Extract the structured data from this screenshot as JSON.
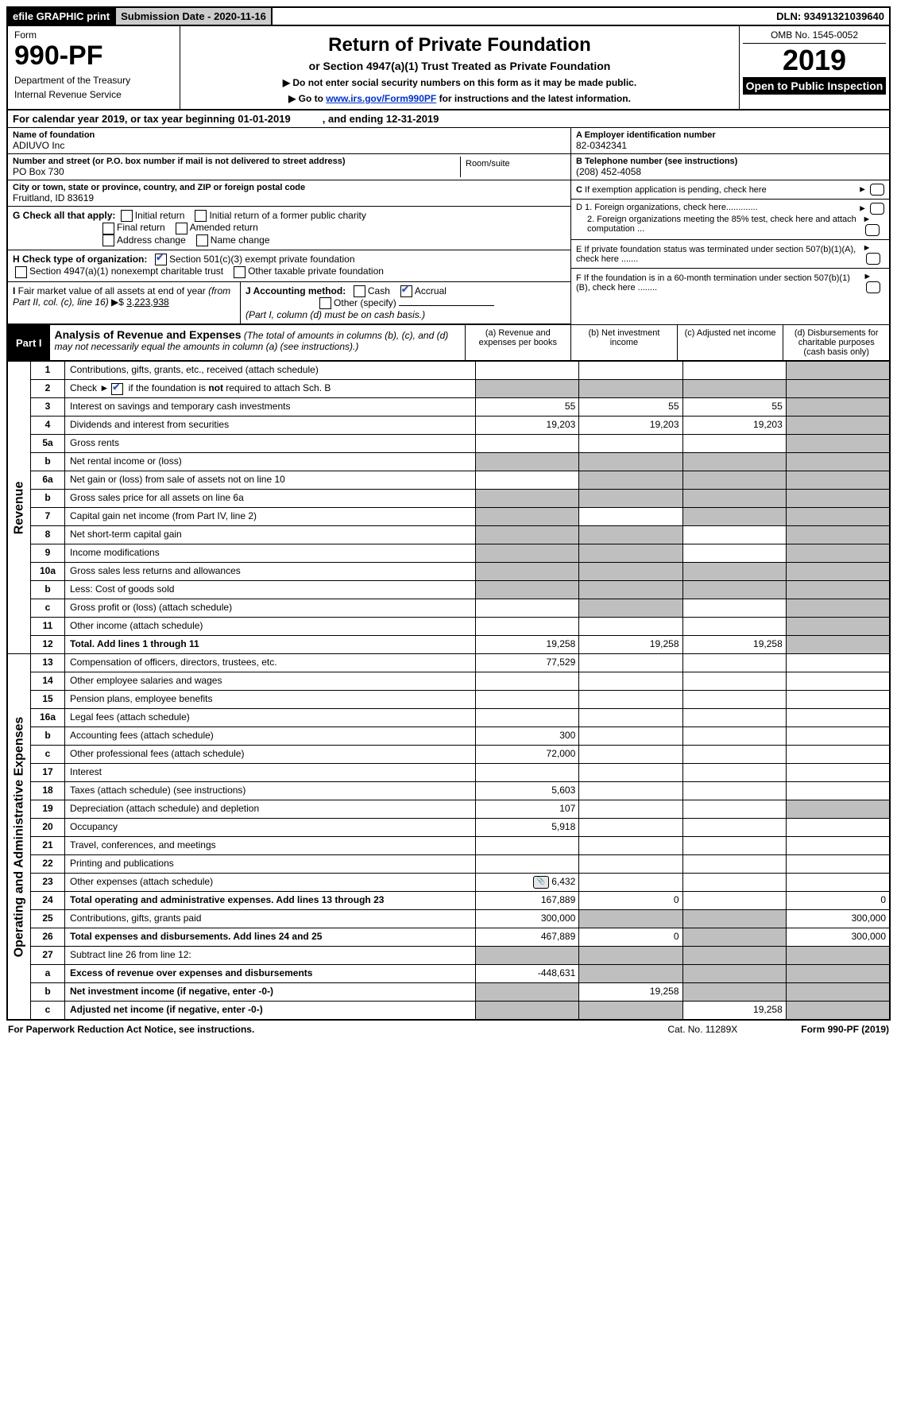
{
  "topbar": {
    "efile": "efile GRAPHIC print",
    "submission_label": "Submission Date - 2020-11-16",
    "dln": "DLN: 93491321039640"
  },
  "header": {
    "form_word": "Form",
    "form_num": "990-PF",
    "dept1": "Department of the Treasury",
    "dept2": "Internal Revenue Service",
    "title": "Return of Private Foundation",
    "subtitle": "or Section 4947(a)(1) Trust Treated as Private Foundation",
    "instruct1": "▶ Do not enter social security numbers on this form as it may be made public.",
    "instruct2_pre": "▶ Go to ",
    "instruct2_link": "www.irs.gov/Form990PF",
    "instruct2_post": " for instructions and the latest information.",
    "omb": "OMB No. 1545-0052",
    "year": "2019",
    "open": "Open to Public Inspection"
  },
  "calendar": {
    "line1": "For calendar year 2019, or tax year beginning 01-01-2019",
    "line2": ", and ending 12-31-2019"
  },
  "identity": {
    "name_label": "Name of foundation",
    "name": "ADIUVO Inc",
    "addr_label": "Number and street (or P.O. box number if mail is not delivered to street address)",
    "addr": "PO Box 730",
    "room_label": "Room/suite",
    "city_label": "City or town, state or province, country, and ZIP or foreign postal code",
    "city": "Fruitland, ID  83619",
    "ein_label": "A Employer identification number",
    "ein": "82-0342341",
    "phone_label": "B Telephone number (see instructions)",
    "phone": "(208) 452-4058",
    "c_label": "C If exemption application is pending, check here",
    "d1": "D 1. Foreign organizations, check here.............",
    "d2": "2. Foreign organizations meeting the 85% test, check here and attach computation ...",
    "e": "E  If private foundation status was terminated under section 507(b)(1)(A), check here .......",
    "f": "F  If the foundation is in a 60-month termination under section 507(b)(1)(B), check here ........"
  },
  "g": {
    "label": "G Check all that apply:",
    "opts": [
      "Initial return",
      "Initial return of a former public charity",
      "Final return",
      "Amended return",
      "Address change",
      "Name change"
    ]
  },
  "h": {
    "label": "H Check type of organization:",
    "opt1": "Section 501(c)(3) exempt private foundation",
    "opt2": "Section 4947(a)(1) nonexempt charitable trust",
    "opt3": "Other taxable private foundation"
  },
  "i": {
    "label": "I Fair market value of all assets at end of year (from Part II, col. (c), line 16) ▶$ ",
    "value": "3,223,938"
  },
  "j": {
    "label": "J Accounting method:",
    "cash": "Cash",
    "accrual": "Accrual",
    "other": "Other (specify)",
    "note": "(Part I, column (d) must be on cash basis.)"
  },
  "part1": {
    "tab": "Part I",
    "title": "Analysis of Revenue and Expenses",
    "note": "(The total of amounts in columns (b), (c), and (d) may not necessarily equal the amounts in column (a) (see instructions).)",
    "col_a": "(a)   Revenue and expenses per books",
    "col_b": "(b)  Net investment income",
    "col_c": "(c)  Adjusted net income",
    "col_d": "(d)  Disbursements for charitable purposes (cash basis only)"
  },
  "sections": {
    "revenue": "Revenue",
    "expenses": "Operating and Administrative Expenses"
  },
  "rows": [
    {
      "n": "1",
      "d": "Contributions, gifts, grants, etc., received (attach schedule)",
      "a": "",
      "b": "",
      "c": "",
      "sd": true
    },
    {
      "n": "2",
      "d": "Check ►☑ if the foundation is not required to attach Sch. B",
      "bold_not": true,
      "sd_all": true
    },
    {
      "n": "3",
      "d": "Interest on savings and temporary cash investments",
      "a": "55",
      "b": "55",
      "c": "55",
      "sd": true
    },
    {
      "n": "4",
      "d": "Dividends and interest from securities",
      "a": "19,203",
      "b": "19,203",
      "c": "19,203",
      "sd": true
    },
    {
      "n": "5a",
      "d": "Gross rents",
      "sd": true
    },
    {
      "n": "b",
      "d": "Net rental income or (loss)",
      "shade_abc": true,
      "sd": true
    },
    {
      "n": "6a",
      "d": "Net gain or (loss) from sale of assets not on line 10",
      "shade_bc": true,
      "sd": true
    },
    {
      "n": "b",
      "d": "Gross sales price for all assets on line 6a",
      "shade_all": true
    },
    {
      "n": "7",
      "d": "Capital gain net income (from Part IV, line 2)",
      "shade_a": true,
      "shade_cd": true
    },
    {
      "n": "8",
      "d": "Net short-term capital gain",
      "shade_ab": true,
      "sd": true
    },
    {
      "n": "9",
      "d": "Income modifications",
      "shade_ab": true,
      "sd": true
    },
    {
      "n": "10a",
      "d": "Gross sales less returns and allowances",
      "shade_all": true
    },
    {
      "n": "b",
      "d": "Less: Cost of goods sold",
      "shade_all": true
    },
    {
      "n": "c",
      "d": "Gross profit or (loss) (attach schedule)",
      "shade_b": true,
      "sd": true
    },
    {
      "n": "11",
      "d": "Other income (attach schedule)",
      "sd": true
    },
    {
      "n": "12",
      "d": "Total. Add lines 1 through 11",
      "bold": true,
      "a": "19,258",
      "b": "19,258",
      "c": "19,258",
      "sd": true
    }
  ],
  "exp_rows": [
    {
      "n": "13",
      "d": "Compensation of officers, directors, trustees, etc.",
      "a": "77,529"
    },
    {
      "n": "14",
      "d": "Other employee salaries and wages"
    },
    {
      "n": "15",
      "d": "Pension plans, employee benefits"
    },
    {
      "n": "16a",
      "d": "Legal fees (attach schedule)"
    },
    {
      "n": "b",
      "d": "Accounting fees (attach schedule)",
      "a": "300"
    },
    {
      "n": "c",
      "d": "Other professional fees (attach schedule)",
      "a": "72,000"
    },
    {
      "n": "17",
      "d": "Interest"
    },
    {
      "n": "18",
      "d": "Taxes (attach schedule) (see instructions)",
      "a": "5,603"
    },
    {
      "n": "19",
      "d": "Depreciation (attach schedule) and depletion",
      "a": "107",
      "sd": true
    },
    {
      "n": "20",
      "d": "Occupancy",
      "a": "5,918"
    },
    {
      "n": "21",
      "d": "Travel, conferences, and meetings"
    },
    {
      "n": "22",
      "d": "Printing and publications"
    },
    {
      "n": "23",
      "d": "Other expenses (attach schedule)",
      "a": "6,432",
      "icon": true
    },
    {
      "n": "24",
      "d": "Total operating and administrative expenses. Add lines 13 through 23",
      "bold": true,
      "a": "167,889",
      "b": "0",
      "dv": "0"
    },
    {
      "n": "25",
      "d": "Contributions, gifts, grants paid",
      "a": "300,000",
      "shade_bc": true,
      "dv": "300,000"
    },
    {
      "n": "26",
      "d": "Total expenses and disbursements. Add lines 24 and 25",
      "bold": true,
      "a": "467,889",
      "b": "0",
      "shade_c": true,
      "dv": "300,000"
    },
    {
      "n": "27",
      "d": "Subtract line 26 from line 12:",
      "shade_all": true
    },
    {
      "n": "a",
      "d": "Excess of revenue over expenses and disbursements",
      "bold": true,
      "a": "-448,631",
      "shade_bcd": true
    },
    {
      "n": "b",
      "d": "Net investment income (if negative, enter -0-)",
      "bold": true,
      "shade_a": true,
      "b": "19,258",
      "shade_cd": true
    },
    {
      "n": "c",
      "d": "Adjusted net income (if negative, enter -0-)",
      "bold": true,
      "shade_ab": true,
      "c": "19,258",
      "sd": true
    }
  ],
  "footer": {
    "left": "For Paperwork Reduction Act Notice, see instructions.",
    "center": "Cat. No. 11289X",
    "right": "Form 990-PF (2019)"
  }
}
